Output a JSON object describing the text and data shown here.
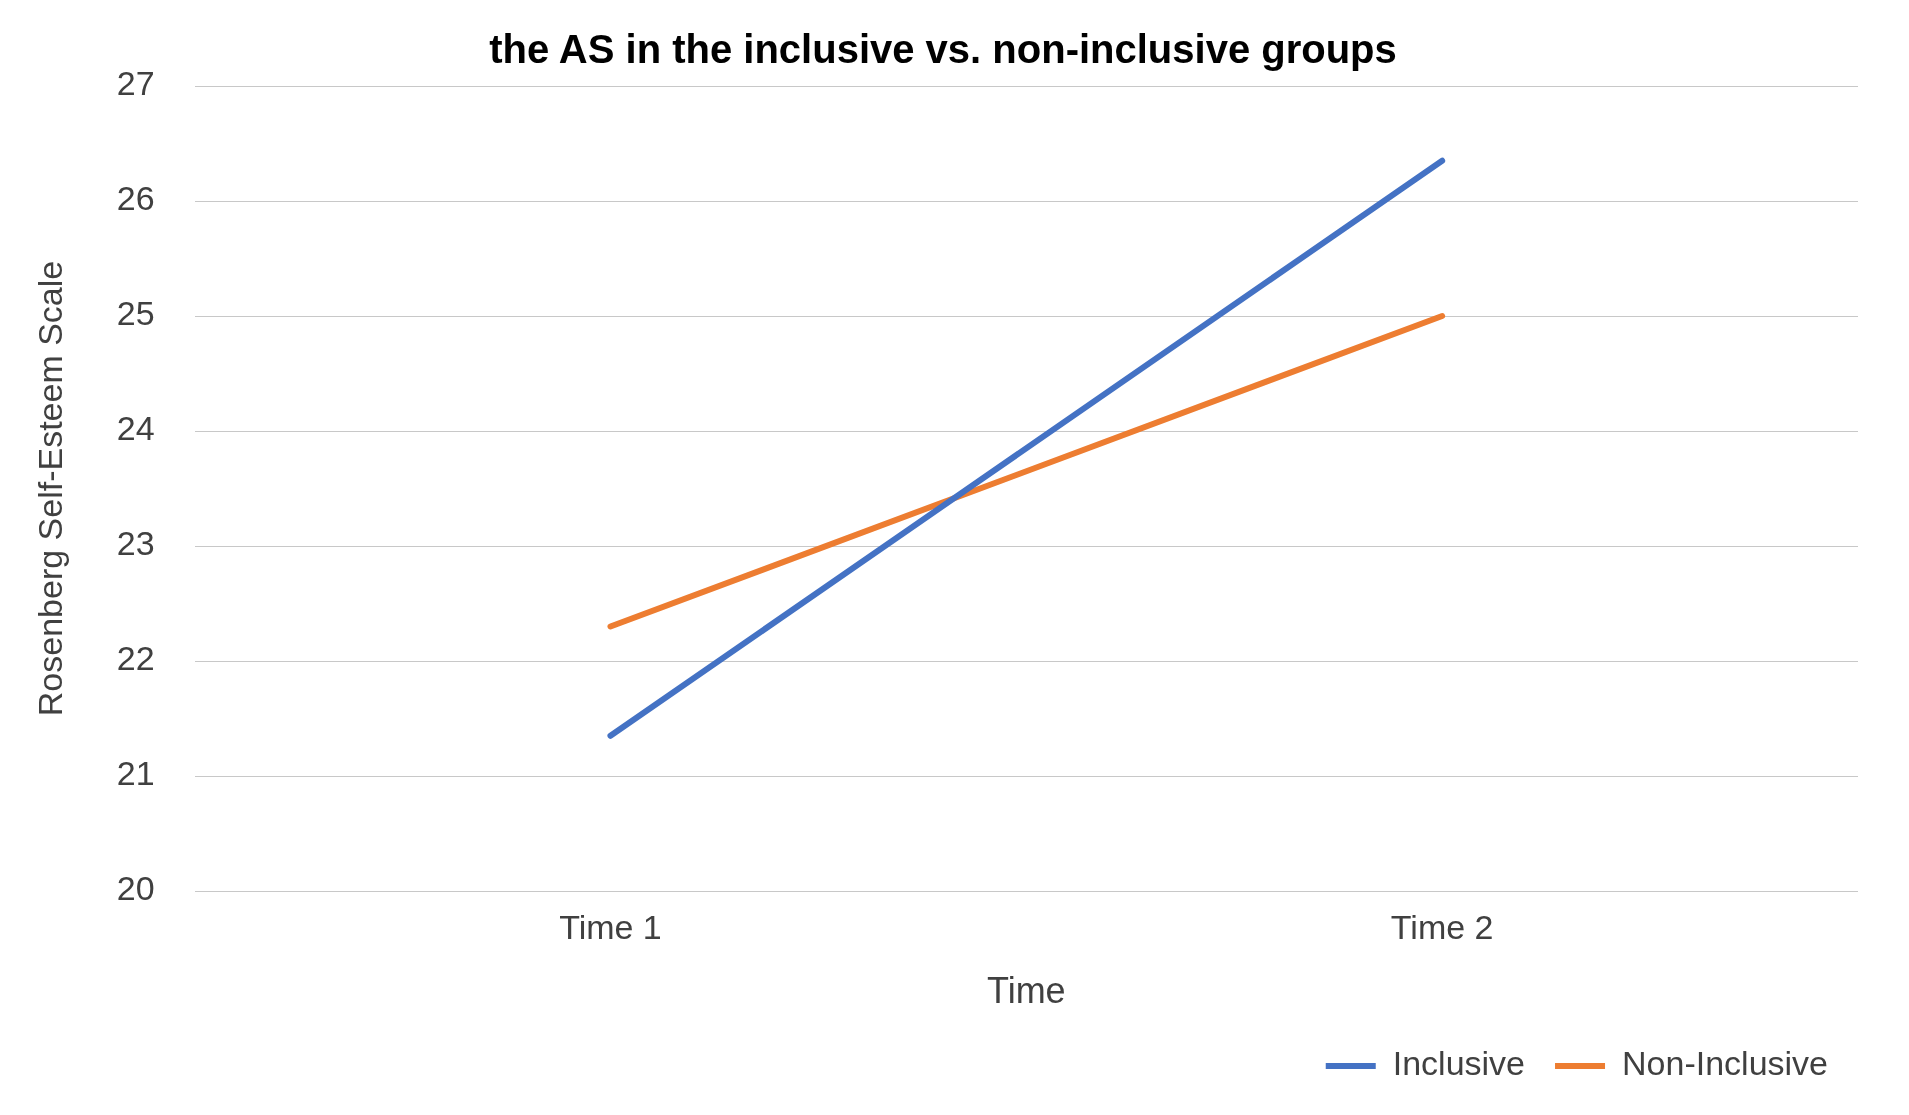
{
  "chart_data": {
    "type": "line",
    "title": "the AS in the inclusive vs. non-inclusive groups",
    "xlabel": "Time",
    "ylabel": "Rosenberg Self-Esteem Scale",
    "categories": [
      "Time 1",
      "Time 2"
    ],
    "series": [
      {
        "name": "Inclusive",
        "color": "#4472c4",
        "values": [
          21.35,
          26.35
        ]
      },
      {
        "name": "Non-Inclusive",
        "color": "#ed7d31",
        "values": [
          22.3,
          25
        ]
      }
    ],
    "ylim": [
      20,
      27
    ],
    "yticks": [
      20,
      21,
      22,
      23,
      24,
      25,
      26,
      27
    ],
    "grid": "y",
    "legend": "bottom right",
    "marker": "none",
    "line_style": "solid"
  }
}
